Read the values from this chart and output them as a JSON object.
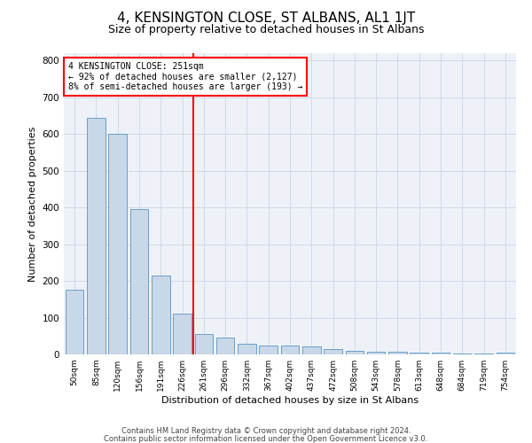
{
  "title": "4, KENSINGTON CLOSE, ST ALBANS, AL1 1JT",
  "subtitle": "Size of property relative to detached houses in St Albans",
  "xlabel": "Distribution of detached houses by size in St Albans",
  "ylabel": "Number of detached properties",
  "footer1": "Contains HM Land Registry data © Crown copyright and database right 2024.",
  "footer2": "Contains public sector information licensed under the Open Government Licence v3.0.",
  "categories": [
    "50sqm",
    "85sqm",
    "120sqm",
    "156sqm",
    "191sqm",
    "226sqm",
    "261sqm",
    "296sqm",
    "332sqm",
    "367sqm",
    "402sqm",
    "437sqm",
    "472sqm",
    "508sqm",
    "543sqm",
    "578sqm",
    "613sqm",
    "648sqm",
    "684sqm",
    "719sqm",
    "754sqm"
  ],
  "values": [
    175,
    645,
    600,
    395,
    215,
    110,
    55,
    45,
    30,
    25,
    25,
    22,
    15,
    10,
    8,
    7,
    5,
    5,
    3,
    2,
    6
  ],
  "bar_color": "#c8d8e8",
  "bar_edge_color": "#6b9ec8",
  "vline_color": "red",
  "annotation_line1": "4 KENSINGTON CLOSE: 251sqm",
  "annotation_line2": "← 92% of detached houses are smaller (2,127)",
  "annotation_line3": "8% of semi-detached houses are larger (193) →",
  "annotation_box_color": "red",
  "ylim": [
    0,
    820
  ],
  "yticks": [
    0,
    100,
    200,
    300,
    400,
    500,
    600,
    700,
    800
  ],
  "grid_color": "#d0d8e8",
  "bg_color": "#eef2f8",
  "title_fontsize": 11,
  "subtitle_fontsize": 9,
  "xlabel_fontsize": 8,
  "ylabel_fontsize": 8
}
